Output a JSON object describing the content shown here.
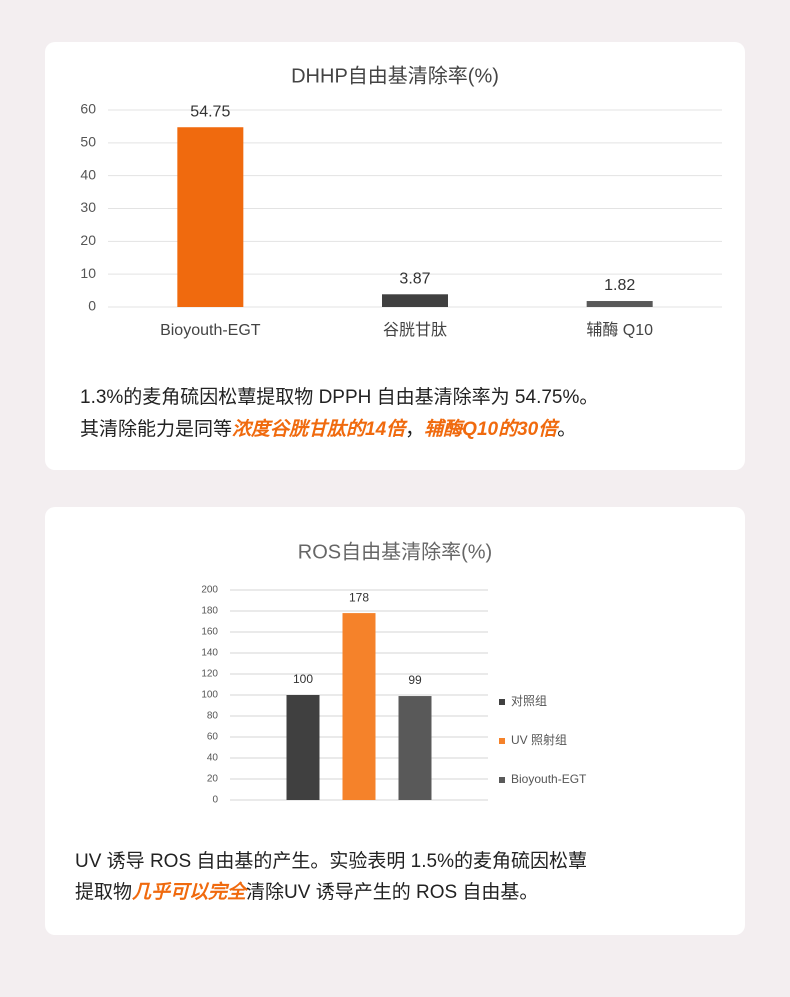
{
  "chart_data": [
    {
      "type": "bar",
      "title": "DHHP自由基清除率(%)",
      "categories": [
        "Bioyouth-EGT",
        "谷胱甘肽",
        "辅酶 Q10"
      ],
      "values": [
        54.75,
        3.87,
        1.82
      ],
      "colors": [
        "#f06a0e",
        "#404040",
        "#595959"
      ],
      "ylim": [
        0,
        60
      ],
      "yticks": [
        0,
        10,
        20,
        30,
        40,
        50,
        60
      ],
      "grid": true
    },
    {
      "type": "bar",
      "title": "ROS自由基清除率(%)",
      "categories": [
        null
      ],
      "series": [
        {
          "name": "对照组",
          "color": "#404040",
          "values": [
            100
          ]
        },
        {
          "name": "UV 照射组",
          "color": "#f5822a",
          "values": [
            178
          ]
        },
        {
          "name": "Bioyouth-EGT",
          "color": "#595959",
          "values": [
            99
          ]
        }
      ],
      "ylim": [
        0,
        200
      ],
      "yticks": [
        0,
        20,
        40,
        60,
        80,
        100,
        120,
        140,
        160,
        180,
        200
      ],
      "grid": true,
      "legend": "right"
    }
  ],
  "captions": [
    [
      "1.3%的麦角硫因松蕈提取物 DPPH 自由基清除率为 54.75%。",
      "其清除能力是同等",
      "浓度谷胱甘肽的14倍",
      "，",
      "辅酶Q10的30倍",
      "。"
    ],
    [
      "UV 诱导 ROS 自由基的产生。实验表明 1.5%的麦角硫因松蕈",
      "提取物",
      "几乎可以完全",
      "清除UV 诱导产生的 ROS 自由基。"
    ]
  ]
}
